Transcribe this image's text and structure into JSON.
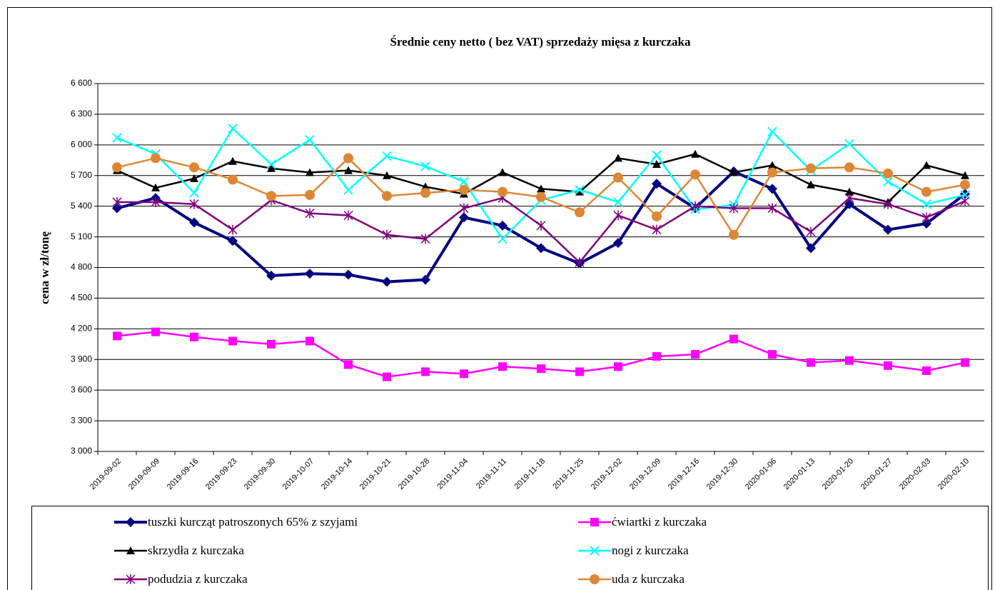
{
  "chart_data": {
    "type": "line",
    "title": "Średnie ceny netto ( bez VAT) sprzedaży mięsa z kurczaka",
    "y_label": "cena w zł/tonę",
    "categories": [
      "2019-09-02",
      "2019-09-09",
      "2019-09-16",
      "2019-09-23",
      "2019-09-30",
      "2019-10-07",
      "2019-10-14",
      "2019-10-21",
      "2019-10-28",
      "2019-11-04",
      "2019-11-11",
      "2019-11-18",
      "2019-11-25",
      "2019-12-02",
      "2019-12-09",
      "2019-12-16",
      "2019-12-30",
      "2020-01-06",
      "2020-01-13",
      "2020-01-20",
      "2020-01-27",
      "2020-02-03",
      "2020-02-10"
    ],
    "ylim": [
      3000,
      6600
    ],
    "yticks": [
      {
        "value": 3000,
        "label": "3 000"
      },
      {
        "value": 3300,
        "label": "3 300"
      },
      {
        "value": 3600,
        "label": "3 600"
      },
      {
        "value": 3900,
        "label": "3 900"
      },
      {
        "value": 4200,
        "label": "4 200"
      },
      {
        "value": 4500,
        "label": "4 500"
      },
      {
        "value": 4800,
        "label": "4 800"
      },
      {
        "value": 5100,
        "label": "5 100"
      },
      {
        "value": 5400,
        "label": "5 400"
      },
      {
        "value": 5700,
        "label": "5 700"
      },
      {
        "value": 6000,
        "label": "6 000"
      },
      {
        "value": 6300,
        "label": "6 300"
      },
      {
        "value": 6600,
        "label": "6 600"
      }
    ],
    "grid": true,
    "series": [
      {
        "name": "tuszki kurcząt patroszonych 65% z szyjami",
        "color": "#000080",
        "marker": "diamond",
        "values": [
          5380,
          5480,
          5240,
          5060,
          4720,
          4740,
          4730,
          4660,
          4680,
          5290,
          5210,
          4990,
          4840,
          5040,
          5620,
          5380,
          5740,
          5570,
          4990,
          5420,
          5170,
          5230,
          5520
        ]
      },
      {
        "name": "ćwiartki z kurczaka",
        "color": "#ff00ff",
        "marker": "square",
        "values": [
          4130,
          4170,
          4120,
          4080,
          4050,
          4080,
          3850,
          3730,
          3780,
          3760,
          3830,
          3810,
          3780,
          3830,
          3930,
          3950,
          4100,
          3950,
          3870,
          3890,
          3840,
          3790,
          3870
        ]
      },
      {
        "name": "skrzydła z kurczaka",
        "color": "#000000",
        "marker": "triangle",
        "values": [
          5750,
          5580,
          5670,
          5840,
          5770,
          5730,
          5750,
          5700,
          5590,
          5520,
          5730,
          5570,
          5540,
          5870,
          5810,
          5910,
          5730,
          5800,
          5610,
          5540,
          5440,
          5800,
          5700
        ]
      },
      {
        "name": "nogi z kurczaka",
        "color": "#00ffff",
        "marker": "cross",
        "values": [
          6070,
          5910,
          5530,
          6160,
          5810,
          6050,
          5560,
          5890,
          5790,
          5640,
          5080,
          5460,
          5560,
          5440,
          5900,
          5370,
          5410,
          6130,
          5750,
          6010,
          5640,
          5420,
          5510
        ]
      },
      {
        "name": "podudzia z kurczaka",
        "color": "#800080",
        "marker": "star",
        "values": [
          5440,
          5440,
          5420,
          5170,
          5460,
          5330,
          5310,
          5120,
          5080,
          5380,
          5480,
          5210,
          4850,
          5310,
          5170,
          5400,
          5380,
          5380,
          5150,
          5480,
          5420,
          5290,
          5450
        ]
      },
      {
        "name": "uda z kurczaka",
        "color": "#dd8736",
        "marker": "circle",
        "values": [
          5780,
          5870,
          5780,
          5660,
          5500,
          5510,
          5870,
          5500,
          5530,
          5560,
          5540,
          5490,
          5340,
          5680,
          5300,
          5710,
          5120,
          5730,
          5770,
          5780,
          5720,
          5540,
          5610
        ]
      }
    ]
  }
}
